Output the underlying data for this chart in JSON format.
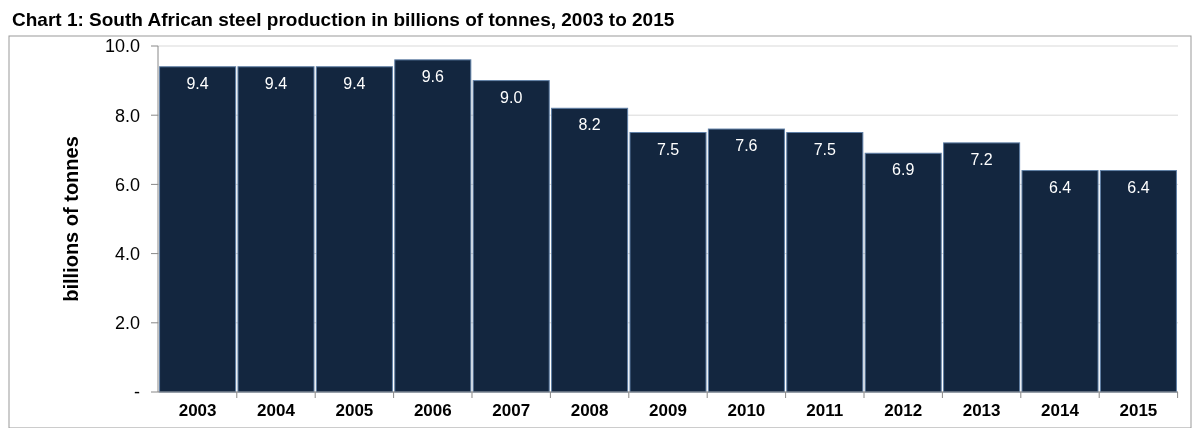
{
  "chart_data": {
    "type": "bar",
    "title": "Chart 1: South African steel production in billions of tonnes, 2003 to 2015",
    "ylabel": "billions of tonnes",
    "categories": [
      "2003",
      "2004",
      "2005",
      "2006",
      "2007",
      "2008",
      "2009",
      "2010",
      "2011",
      "2012",
      "2013",
      "2014",
      "2015"
    ],
    "values": [
      9.4,
      9.4,
      9.4,
      9.6,
      9.0,
      8.2,
      7.5,
      7.6,
      7.5,
      6.9,
      7.2,
      6.4,
      6.4
    ],
    "value_labels": [
      "9.4",
      "9.4",
      "9.4",
      "9.6",
      "9.0",
      "8.2",
      "7.5",
      "7.6",
      "7.5",
      "6.9",
      "7.2",
      "6.4",
      "6.4"
    ],
    "color": "#13263f",
    "ylim": [
      0,
      10
    ],
    "yticks": [
      {
        "value": 0,
        "label": "-"
      },
      {
        "value": 2,
        "label": "2.0"
      },
      {
        "value": 4,
        "label": "4.0"
      },
      {
        "value": 6,
        "label": "6.0"
      },
      {
        "value": 8,
        "label": "8.0"
      },
      {
        "value": 10,
        "label": "10.0"
      }
    ],
    "grid": "y"
  }
}
